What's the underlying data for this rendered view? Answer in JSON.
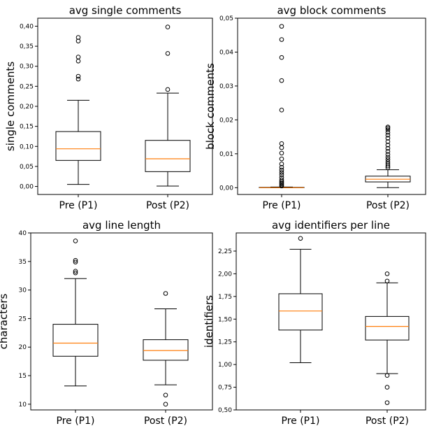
{
  "chart_data": [
    {
      "type": "box",
      "title": "avg single comments",
      "ylabel": "single comments",
      "xlabel": "",
      "categories": [
        "Pre (P1)",
        "Post (P2)"
      ],
      "ylim": [
        -0.02,
        0.42
      ],
      "yticks": [
        0.0,
        0.05,
        0.1,
        0.15,
        0.2,
        0.25,
        0.3,
        0.35,
        0.4
      ],
      "ytick_labels": [
        "0,00",
        "0,05",
        "0,10",
        "0,15",
        "0,20",
        "0,25",
        "0,30",
        "0,35",
        "0,40"
      ],
      "boxes": [
        {
          "category": "Pre (P1)",
          "whisker_low": 0.005,
          "q1": 0.065,
          "median": 0.094,
          "q3": 0.137,
          "whisker_high": 0.215,
          "outliers": [
            0.268,
            0.275,
            0.313,
            0.323,
            0.363,
            0.372
          ]
        },
        {
          "category": "Post (P2)",
          "whisker_low": 0.001,
          "q1": 0.037,
          "median": 0.069,
          "q3": 0.115,
          "whisker_high": 0.233,
          "outliers": [
            0.242,
            0.332,
            0.398
          ]
        }
      ]
    },
    {
      "type": "box",
      "title": "avg block comments",
      "ylabel": "block comments",
      "xlabel": "",
      "categories": [
        "Pre (P1)",
        "Post (P2)"
      ],
      "ylim": [
        -0.002,
        0.05
      ],
      "yticks": [
        0.0,
        0.01,
        0.02,
        0.03,
        0.04,
        0.05
      ],
      "ytick_labels": [
        "0,00",
        "0,01",
        "0,02",
        "0,03",
        "0,04",
        "0,05"
      ],
      "boxes": [
        {
          "category": "Pre (P1)",
          "whisker_low": 0.0,
          "q1": 0.0,
          "median": 0.0,
          "q3": 0.0001,
          "whisker_high": 0.0002,
          "outliers": [
            0.0005,
            0.0008,
            0.0011,
            0.0014,
            0.0018,
            0.0023,
            0.003,
            0.0038,
            0.0045,
            0.0052,
            0.006,
            0.007,
            0.0085,
            0.0102,
            0.0118,
            0.013,
            0.0229,
            0.0316,
            0.0384,
            0.0437,
            0.0476
          ]
        },
        {
          "category": "Post (P2)",
          "whisker_low": 0.0,
          "q1": 0.0017,
          "median": 0.0025,
          "q3": 0.0034,
          "whisker_high": 0.0053,
          "outliers": [
            0.0059,
            0.0064,
            0.007,
            0.0076,
            0.0083,
            0.009,
            0.0098,
            0.0107,
            0.0116,
            0.0126,
            0.0136,
            0.0146,
            0.0155,
            0.0163,
            0.0171,
            0.0176,
            0.0179
          ]
        }
      ]
    },
    {
      "type": "box",
      "title": "avg line length",
      "ylabel": "characters",
      "xlabel": "",
      "categories": [
        "Pre (P1)",
        "Post (P2)"
      ],
      "ylim": [
        9.0,
        40.0
      ],
      "yticks": [
        10,
        15,
        20,
        25,
        30,
        35,
        40
      ],
      "ytick_labels": [
        "10",
        "15",
        "20",
        "25",
        "30",
        "35",
        "40"
      ],
      "boxes": [
        {
          "category": "Pre (P1)",
          "whisker_low": 13.2,
          "q1": 18.4,
          "median": 20.7,
          "q3": 24.0,
          "whisker_high": 32.0,
          "outliers": [
            33.0,
            33.3,
            34.9,
            35.2,
            38.6
          ]
        },
        {
          "category": "Post (P2)",
          "whisker_low": 13.4,
          "q1": 17.7,
          "median": 19.4,
          "q3": 21.3,
          "whisker_high": 26.7,
          "outliers": [
            29.4,
            11.6,
            10.0
          ]
        }
      ]
    },
    {
      "type": "box",
      "title": "avg identifiers per line",
      "ylabel": "identifiers",
      "xlabel": "",
      "categories": [
        "Pre (P1)",
        "Post (P2)"
      ],
      "ylim": [
        0.5,
        2.45
      ],
      "yticks": [
        0.5,
        0.75,
        1.0,
        1.25,
        1.5,
        1.75,
        2.0,
        2.25
      ],
      "ytick_labels": [
        "0,50",
        "0,75",
        "1,00",
        "1,25",
        "1,50",
        "1,75",
        "2,00",
        "2,25"
      ],
      "boxes": [
        {
          "category": "Pre (P1)",
          "whisker_low": 1.02,
          "q1": 1.38,
          "median": 1.59,
          "q3": 1.78,
          "whisker_high": 2.27,
          "outliers": [
            2.39
          ]
        },
        {
          "category": "Post (P2)",
          "whisker_low": 0.9,
          "q1": 1.27,
          "median": 1.42,
          "q3": 1.53,
          "whisker_high": 1.9,
          "outliers": [
            1.92,
            2.0,
            0.88,
            0.75,
            0.58
          ]
        }
      ]
    }
  ],
  "colors": {
    "median": "#ff7f0e",
    "box": "#000000",
    "outlier": "#000000"
  }
}
